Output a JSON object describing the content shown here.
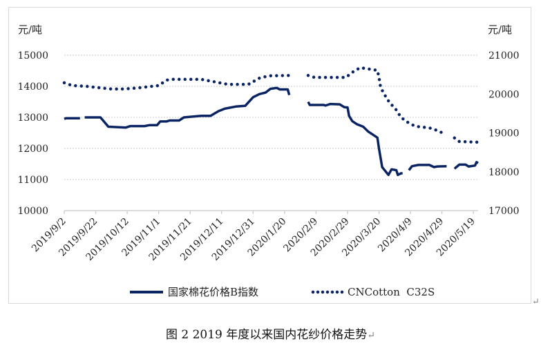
{
  "chart_data": {
    "type": "line",
    "title": "",
    "left_unit": "元/吨",
    "right_unit": "元/吨",
    "x_unit": "days since 2019/9/2",
    "xlim": [
      0,
      263
    ],
    "x_ticks": [
      0,
      20,
      40,
      60,
      80,
      100,
      120,
      140,
      160,
      180,
      200,
      220,
      240,
      260
    ],
    "x_tick_labels": [
      "2019/9/2",
      "2019/9/22",
      "2019/10/12",
      "2019/11/1",
      "2019/11/21",
      "2019/12/11",
      "2019/12/31",
      "2020/1/20",
      "2020/2/9",
      "2020/2/29",
      "2020/3/20",
      "2020/4/9",
      "2020/4/29",
      "2020/5/19"
    ],
    "ylim_left": [
      10000,
      15000
    ],
    "y_ticks_left": [
      "10000",
      "11000",
      "12000",
      "13000",
      "14000",
      "15000"
    ],
    "ylim_right": [
      17000,
      21000
    ],
    "y_ticks_right": [
      "17000",
      "18000",
      "19000",
      "20000",
      "21000"
    ],
    "grid": "horizontal dotted",
    "legend_position": "bottom",
    "series": [
      {
        "name": "国家棉花价格B指数",
        "axis": "left",
        "style": "solid",
        "color": "#0a2463",
        "points": [
          [
            0,
            12950
          ],
          [
            1,
            12970
          ],
          [
            10,
            12970
          ],
          null,
          [
            13,
            13000
          ],
          [
            23,
            13000
          ],
          [
            28,
            12700
          ],
          [
            39,
            12670
          ],
          [
            42,
            12720
          ],
          [
            51,
            12720
          ],
          [
            54,
            12750
          ],
          [
            59,
            12750
          ],
          [
            61,
            12870
          ],
          [
            65,
            12870
          ],
          [
            67,
            12900
          ],
          [
            73,
            12900
          ],
          [
            76,
            13000
          ],
          [
            87,
            13050
          ],
          [
            93,
            13050
          ],
          [
            98,
            13200
          ],
          [
            102,
            13280
          ],
          [
            109,
            13350
          ],
          [
            115,
            13370
          ],
          [
            120,
            13650
          ],
          [
            124,
            13750
          ],
          [
            128,
            13800
          ],
          [
            131,
            13920
          ],
          [
            135,
            13950
          ],
          [
            137,
            13900
          ],
          [
            142,
            13900
          ],
          [
            143,
            13720
          ],
          null,
          [
            155,
            13500
          ],
          [
            156,
            13400
          ],
          [
            165,
            13400
          ],
          [
            166,
            13380
          ],
          [
            169,
            13430
          ],
          [
            175,
            13420
          ],
          [
            178,
            13330
          ],
          [
            180,
            13320
          ],
          [
            181,
            13050
          ],
          [
            183,
            12880
          ],
          [
            186,
            12780
          ],
          [
            190,
            12700
          ],
          [
            193,
            12550
          ],
          [
            199,
            12350
          ],
          [
            200,
            12000
          ],
          [
            202,
            11400
          ],
          [
            206,
            11150
          ],
          [
            208,
            11330
          ],
          [
            211,
            11300
          ],
          [
            212,
            11150
          ],
          [
            214,
            11200
          ],
          [
            215,
            11200
          ],
          null,
          [
            219,
            11300
          ],
          [
            221,
            11430
          ],
          [
            225,
            11470
          ],
          [
            232,
            11470
          ],
          [
            235,
            11400
          ],
          [
            237,
            11420
          ],
          [
            243,
            11430
          ],
          null,
          [
            248,
            11350
          ],
          [
            251,
            11480
          ],
          [
            255,
            11480
          ],
          [
            257,
            11420
          ],
          [
            261,
            11450
          ],
          [
            262,
            11560
          ],
          [
            263,
            11530
          ]
        ]
      },
      {
        "name": "CNCotton  C32S",
        "axis": "right",
        "style": "dotted",
        "color": "#0a2463",
        "points": [
          [
            0,
            20290
          ],
          [
            5,
            20220
          ],
          [
            14,
            20200
          ],
          [
            23,
            20160
          ],
          [
            30,
            20130
          ],
          [
            38,
            20130
          ],
          [
            47,
            20160
          ],
          [
            60,
            20220
          ],
          [
            65,
            20360
          ],
          [
            69,
            20380
          ],
          [
            87,
            20380
          ],
          [
            95,
            20320
          ],
          [
            104,
            20250
          ],
          [
            117,
            20250
          ],
          [
            124,
            20410
          ],
          [
            130,
            20470
          ],
          [
            143,
            20480
          ],
          null,
          [
            155,
            20480
          ],
          [
            159,
            20430
          ],
          [
            179,
            20430
          ],
          [
            183,
            20560
          ],
          [
            188,
            20680
          ],
          [
            199,
            20610
          ],
          [
            200,
            20430
          ],
          [
            201,
            20180
          ],
          [
            203,
            20020
          ],
          [
            207,
            19760
          ],
          [
            210,
            19650
          ],
          [
            214,
            19400
          ],
          [
            218,
            19280
          ],
          [
            223,
            19170
          ],
          [
            232,
            19130
          ],
          [
            238,
            19050
          ],
          [
            242,
            18960
          ],
          null,
          [
            248,
            18870
          ],
          [
            251,
            18780
          ],
          [
            263,
            18760
          ]
        ]
      }
    ]
  },
  "caption": "图 2  2019 年度以来国内花纱价格走势",
  "return_mark": "↵"
}
